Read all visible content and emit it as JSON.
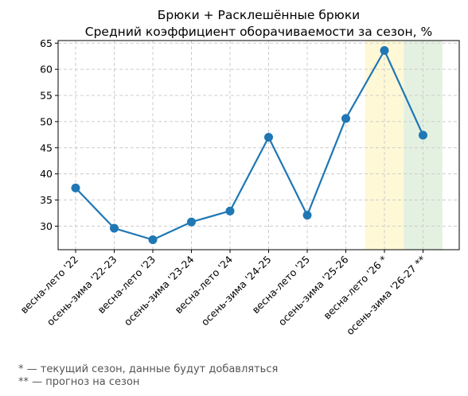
{
  "chart_data": {
    "type": "line",
    "title": "Брюки + Расклешённые брюки",
    "subtitle": "Средний коэффициент оборачиваемости за сезон, %",
    "xlabel": "",
    "ylabel": "",
    "categories": [
      "весна-лето '22",
      "осень-зима '22-23",
      "весна-лето '23",
      "осень-зима '23-24",
      "весна-лето '24",
      "осень-зима '24-25",
      "весна-лето '25",
      "осень-зима '25-26",
      "весна-лето '26 *",
      "осень-зима '26-27 **"
    ],
    "series": [
      {
        "values": [
          37.3,
          29.6,
          27.4,
          30.8,
          32.9,
          47.0,
          32.1,
          50.6,
          63.6,
          47.4
        ],
        "color": "#1f77b4"
      }
    ],
    "ylim": [
      25.5,
      65.5
    ],
    "yticks": [
      30,
      35,
      40,
      45,
      50,
      55,
      60,
      65
    ],
    "grid": true,
    "highlights": [
      {
        "category": "весна-лето '26 *",
        "color": "#fff8d6"
      },
      {
        "category": "осень-зима '26-27 **",
        "color": "#e4f1e1"
      }
    ]
  },
  "footnotes": {
    "current": "* — текущий сезон, данные будут добавляться",
    "forecast": "** — прогноз на сезон"
  }
}
